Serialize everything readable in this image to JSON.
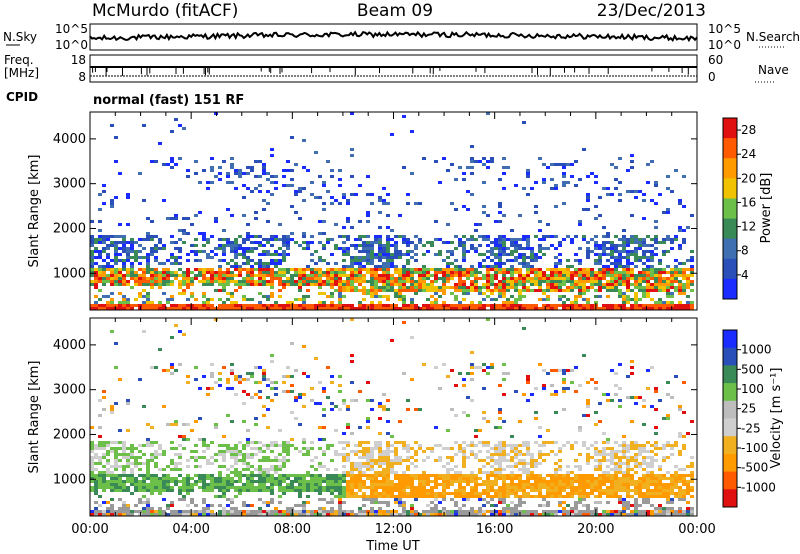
{
  "header": {
    "station": "McMurdo (fitACF)",
    "beam": "Beam 09",
    "date": "23/Dec/2013"
  },
  "noise_panel": {
    "left_label": "N.Sky",
    "right_label": "N.Search",
    "left_ticks": [
      "10^5",
      "10^0"
    ],
    "right_ticks": [
      "10^5",
      "10^0"
    ]
  },
  "freq_panel": {
    "left_label_1": "Freq.",
    "left_label_2": "[MHz]",
    "left_ticks": [
      "18",
      "8"
    ],
    "right_ticks": [
      "60",
      "0"
    ],
    "right_label": "Nave"
  },
  "cpid": {
    "label": "CPID",
    "value": "normal (fast) 151 RF"
  },
  "colors": {
    "power": [
      "#1a2cff",
      "#2a4fb8",
      "#3f6fb0",
      "#3a8a58",
      "#6cc04a",
      "#f0c200",
      "#ff9a00",
      "#ff5a00",
      "#e01010"
    ],
    "velocity": [
      "#e01010",
      "#ff5a00",
      "#ff9a00",
      "#f0b020",
      "#cfcfcf",
      "#bdbdbd",
      "#6cc04a",
      "#3a8a58",
      "#2a4fb8",
      "#1a2cff"
    ],
    "ground_scatter": "#9a9a9a"
  },
  "chart_data": [
    {
      "type": "heatmap",
      "name": "power",
      "ylabel": "Slant Range [km]",
      "xlabel": "",
      "x_ticks": [
        "00:00",
        "04:00",
        "08:00",
        "12:00",
        "16:00",
        "20:00",
        "00:00"
      ],
      "y_ticks": [
        1000,
        2000,
        3000,
        4000
      ],
      "ylim": [
        180,
        4600
      ],
      "xlim_hours": [
        0,
        24
      ],
      "colorbar_label": "Power [dB]",
      "colorbar_ticks": [
        4,
        8,
        12,
        16,
        20,
        24,
        28
      ],
      "colorbar_range": [
        0,
        30
      ]
    },
    {
      "type": "heatmap",
      "name": "velocity",
      "ylabel": "Slant Range [km]",
      "xlabel": "Time UT",
      "x_ticks": [
        "00:00",
        "04:00",
        "08:00",
        "12:00",
        "16:00",
        "20:00",
        "00:00"
      ],
      "y_ticks": [
        1000,
        2000,
        3000,
        4000
      ],
      "ylim": [
        180,
        4600
      ],
      "xlim_hours": [
        0,
        24
      ],
      "colorbar_label": "Velocity [m s⁻¹]",
      "colorbar_ticks": [
        "1000",
        "500",
        "100",
        "25",
        "-25",
        "-100",
        "-500",
        "-1000"
      ]
    }
  ]
}
